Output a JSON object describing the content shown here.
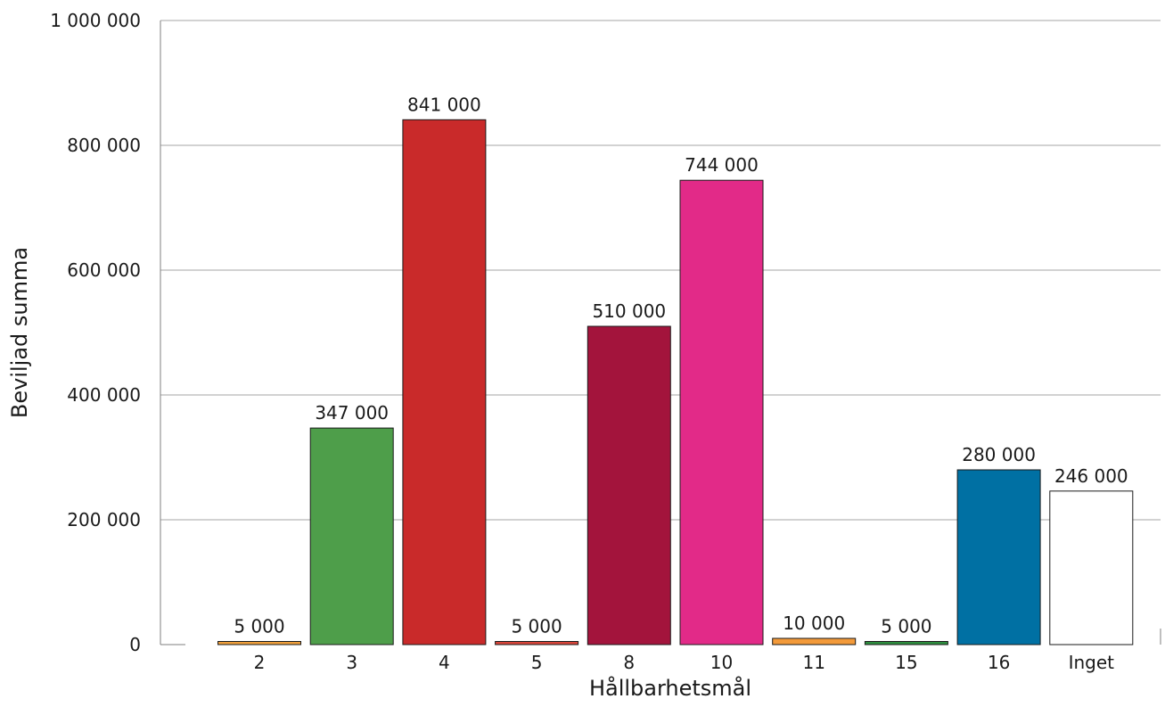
{
  "chart_data": {
    "type": "bar",
    "title": "",
    "xlabel": "Hållbarhetsmål",
    "ylabel": "Beviljad summa",
    "ylim": [
      0,
      1000000
    ],
    "yticks": [
      0,
      200000,
      400000,
      600000,
      800000,
      1000000
    ],
    "ytick_labels": [
      "0",
      "200 000",
      "400 000",
      "600 000",
      "800 000",
      "1 000 000"
    ],
    "grid": true,
    "categories": [
      "2",
      "3",
      "4",
      "5",
      "8",
      "10",
      "11",
      "15",
      "16",
      "Inget"
    ],
    "values": [
      5000,
      347000,
      841000,
      5000,
      510000,
      744000,
      10000,
      5000,
      280000,
      246000
    ],
    "value_labels": [
      "5 000",
      "347 000",
      "841 000",
      "5 000",
      "510 000",
      "744 000",
      "10 000",
      "5 000",
      "280 000",
      "246 000"
    ],
    "colors": [
      "#f0a03c",
      "#4e9e4a",
      "#c92a2a",
      "#d9463a",
      "#a3143c",
      "#e22a88",
      "#f39a3a",
      "#2e8f3f",
      "#0070a3",
      "#ffffff"
    ]
  }
}
